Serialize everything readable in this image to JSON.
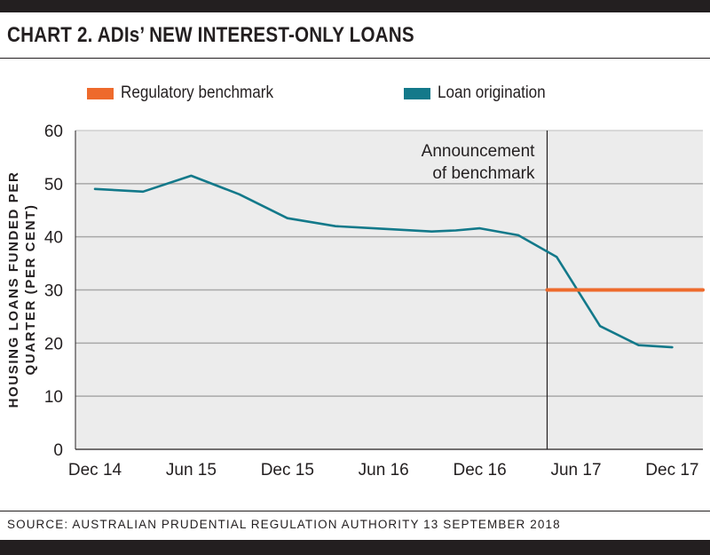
{
  "header": {
    "title": "CHART 2. ADIs’ NEW INTEREST-ONLY LOANS"
  },
  "footer": {
    "source": "SOURCE: AUSTRALIAN PRUDENTIAL REGULATION AUTHORITY 13 SEPTEMBER 2018"
  },
  "colors": {
    "benchmark": "#ee6a2c",
    "origination": "#13798a",
    "plot_bg": "#ececec",
    "grid": "#a8a8a8"
  },
  "chart_data": {
    "type": "line",
    "title": "",
    "ylabel": "HOUSING LOANS FUNDED PER QUARTER (PER CENT)",
    "ylabel_lines": [
      "HOUSING LOANS FUNDED PER",
      "QUARTER (PER CENT)"
    ],
    "xlabel": "",
    "ylim": [
      0,
      60
    ],
    "yticks": [
      0,
      10,
      20,
      30,
      40,
      50,
      60
    ],
    "xlim": [
      0,
      13
    ],
    "xticks": [
      {
        "x": 0,
        "label": "Dec 14"
      },
      {
        "x": 2,
        "label": "Jun 15"
      },
      {
        "x": 4,
        "label": "Dec 15"
      },
      {
        "x": 6,
        "label": "Jun 16"
      },
      {
        "x": 8,
        "label": "Dec 16"
      },
      {
        "x": 10,
        "label": "Jun 17"
      },
      {
        "x": 12,
        "label": "Dec 17"
      }
    ],
    "grid": "horizontal",
    "legend_position": "top",
    "series": [
      {
        "name": "Loan origination",
        "x": [
          0,
          1,
          2,
          3,
          4,
          5,
          6,
          7,
          7.5,
          8,
          8.8,
          9.6,
          10.5,
          11.3,
          12
        ],
        "values": [
          49,
          48.5,
          51.5,
          48,
          43.5,
          42,
          41.5,
          41,
          41.2,
          41.6,
          40.3,
          36.2,
          23.2,
          19.6,
          19.2
        ]
      },
      {
        "name": "Regulatory benchmark",
        "x": [
          9.4,
          13
        ],
        "values": [
          30,
          30
        ]
      }
    ],
    "annotation": {
      "x": 9.4,
      "lines": [
        "Announcement",
        "of benchmark"
      ]
    }
  }
}
